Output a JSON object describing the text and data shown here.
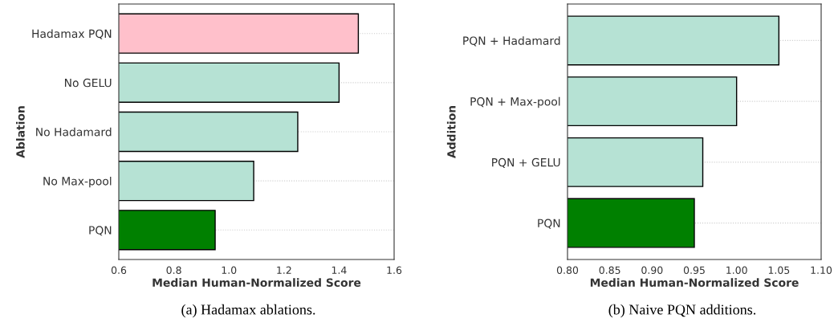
{
  "chart_data": [
    {
      "type": "bar",
      "orientation": "horizontal",
      "categories": [
        "Hadamax PQN",
        "No GELU",
        "No Hadamard",
        "No Max-pool",
        "PQN"
      ],
      "values": [
        1.47,
        1.4,
        1.25,
        1.09,
        0.95
      ],
      "colors": [
        "#ffc0cb",
        "#b6e2d4",
        "#b6e2d4",
        "#b6e2d4",
        "#008000"
      ],
      "xlim": [
        0.6,
        1.6
      ],
      "xticks": [
        0.6,
        0.8,
        {
          "value": 1.0,
          "label": "1.0"
        },
        1.2,
        1.4,
        1.6
      ],
      "xlabel": "Median Human-Normalized Score",
      "ylabel": "Ablation",
      "grid": "y",
      "annotations": [
        "(a) Hadamax ablations."
      ]
    },
    {
      "type": "bar",
      "orientation": "horizontal",
      "categories": [
        "PQN + Hadamard",
        "PQN + Max-pool",
        "PQN + GELU",
        "PQN"
      ],
      "values": [
        1.05,
        1.0,
        0.96,
        0.95
      ],
      "colors": [
        "#b6e2d4",
        "#b6e2d4",
        "#b6e2d4",
        "#008000"
      ],
      "xlim": [
        0.8,
        1.1
      ],
      "xticks": [
        {
          "value": 0.8,
          "label": "0.80"
        },
        {
          "value": 0.85,
          "label": "0.85"
        },
        {
          "value": 0.9,
          "label": "0.90"
        },
        {
          "value": 0.95,
          "label": "0.95"
        },
        {
          "value": 1.0,
          "label": "1.00"
        },
        {
          "value": 1.05,
          "label": "1.05"
        },
        {
          "value": 1.1,
          "label": "1.10"
        }
      ],
      "xlabel": "Median Human-Normalized Score",
      "ylabel": "Addition",
      "grid": "y",
      "annotations": [
        "(b) Naive PQN additions."
      ]
    }
  ]
}
